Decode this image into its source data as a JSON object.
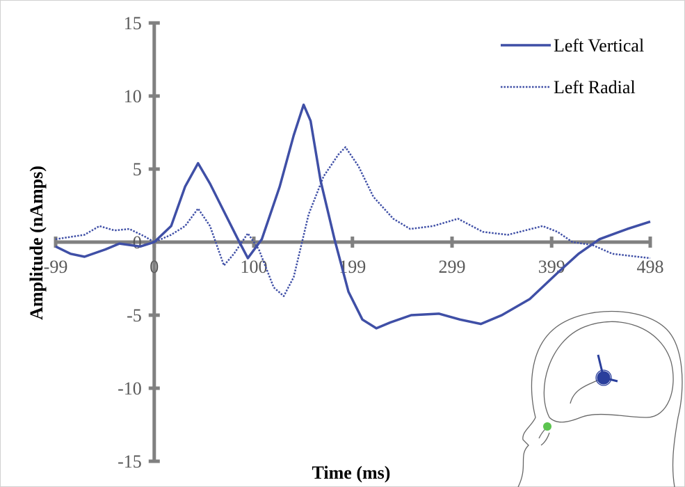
{
  "chart_data": {
    "type": "line",
    "x_label": "Time (ms)",
    "y_label": "Amplitude (nAmps)",
    "xlim": [
      -99,
      498
    ],
    "xticks": [
      -99,
      0,
      100,
      199,
      299,
      399,
      498
    ],
    "ylim": [
      -15,
      15
    ],
    "yticks": [
      -15,
      -10,
      -5,
      0,
      5,
      10,
      15
    ],
    "legend": "upper right",
    "series": [
      {
        "name": "Left Vertical",
        "color": "#3f4fa6",
        "style": "solid",
        "x": [
          -99,
          -84,
          -70,
          -49,
          -35,
          -14,
          0,
          17,
          31,
          44,
          56,
          70,
          84,
          94,
          108,
          126,
          140,
          150,
          157,
          167,
          181,
          195,
          209,
          223,
          237,
          258,
          286,
          307,
          328,
          349,
          377,
          405,
          426,
          447,
          475,
          498
        ],
        "values": [
          -0.3,
          -0.8,
          -1.0,
          -0.5,
          -0.1,
          -0.3,
          0,
          1.1,
          3.8,
          5.4,
          4.0,
          2.1,
          0.2,
          -1.1,
          0.2,
          3.8,
          7.3,
          9.4,
          8.3,
          4.2,
          0.2,
          -3.4,
          -5.3,
          -5.9,
          -5.5,
          -5.0,
          -4.9,
          -5.3,
          -5.6,
          -5.0,
          -3.9,
          -2.1,
          -0.8,
          0.2,
          0.9,
          1.4
        ]
      },
      {
        "name": "Left Radial",
        "color": "#3f4fa6",
        "style": "dotted",
        "x": [
          -99,
          -70,
          -55,
          -40,
          -25,
          -10,
          0,
          17,
          31,
          44,
          56,
          70,
          80,
          94,
          105,
          120,
          130,
          140,
          155,
          170,
          185,
          192,
          205,
          220,
          240,
          257,
          280,
          305,
          330,
          355,
          390,
          405,
          420,
          440,
          460,
          498
        ],
        "values": [
          0.2,
          0.5,
          1.1,
          0.8,
          0.9,
          0.4,
          0,
          0.5,
          1.1,
          2.3,
          1.1,
          -1.6,
          -0.8,
          0.6,
          -0.5,
          -3.1,
          -3.7,
          -2.4,
          1.9,
          4.5,
          6.0,
          6.5,
          5.2,
          3.1,
          1.6,
          0.9,
          1.1,
          1.6,
          0.7,
          0.5,
          1.1,
          0.7,
          0,
          -0.2,
          -0.8,
          -1.1
        ]
      }
    ]
  }
}
